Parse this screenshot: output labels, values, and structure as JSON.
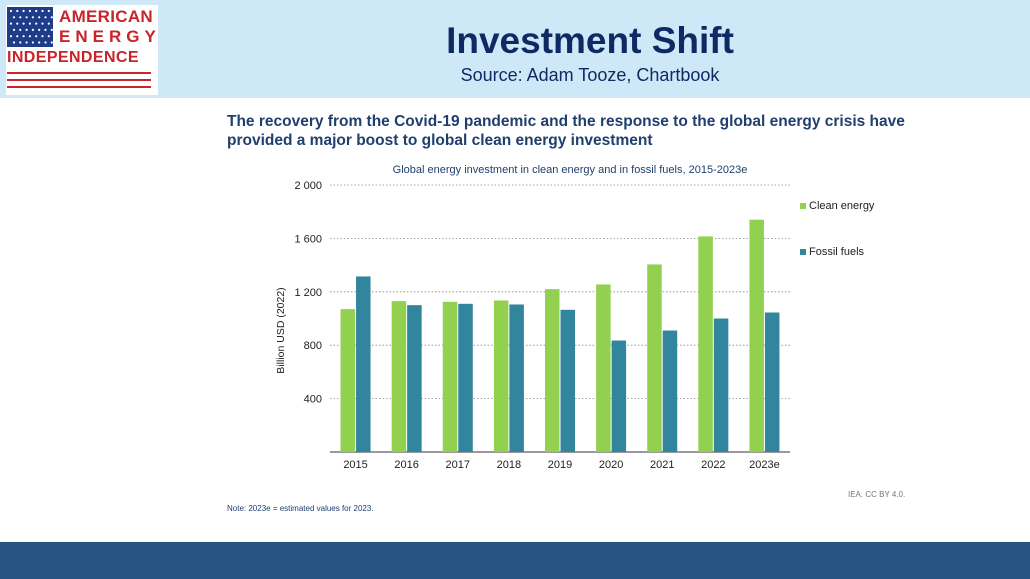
{
  "header": {
    "title": "Investment Shift",
    "source": "Source: Adam Tooze, Chartbook",
    "logo": {
      "line1": "AMERICAN",
      "line2": "ENERGY",
      "line3": "INDEPENDENCE"
    }
  },
  "headline": "The recovery from the Covid-19 pandemic and the response to the global energy crisis have provided a major boost to global clean energy investment",
  "chart_data": {
    "type": "bar",
    "title": "Global energy investment in clean energy and in fossil fuels, 2015-2023e",
    "xlabel": "",
    "ylabel": "Billion USD (2022)",
    "categories": [
      "2015",
      "2016",
      "2017",
      "2018",
      "2019",
      "2020",
      "2021",
      "2022",
      "2023e"
    ],
    "series": [
      {
        "name": "Clean energy",
        "color": "#92d050",
        "values": [
          1070,
          1130,
          1125,
          1135,
          1220,
          1255,
          1405,
          1615,
          1740
        ]
      },
      {
        "name": "Fossil fuels",
        "color": "#31859c",
        "values": [
          1315,
          1100,
          1110,
          1105,
          1065,
          835,
          910,
          1000,
          1045
        ]
      }
    ],
    "ylim": [
      0,
      2000
    ],
    "yticks": [
      400,
      800,
      1200,
      1600,
      2000
    ],
    "ytick_labels": [
      "400",
      "800",
      "1 200",
      "1 600",
      "2 000"
    ],
    "grid": true,
    "legend": "right"
  },
  "note": "Note:  2023e = estimated values for 2023.",
  "credit": "IEA. CC BY 4.0.",
  "colors": {
    "header_bg": "#cfe8f8",
    "title": "#0f2a63",
    "footer": "#285484",
    "logo_red": "#c8242b",
    "logo_blue": "#1f3c88"
  }
}
